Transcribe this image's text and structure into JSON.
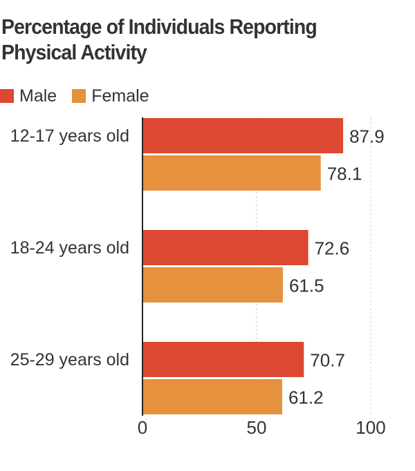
{
  "title": "Percentage of Individuals Reporting Physical Activity",
  "legend": [
    {
      "name": "Male",
      "color": "#dc4831"
    },
    {
      "name": "Female",
      "color": "#e5913e"
    }
  ],
  "chart_data": {
    "type": "bar",
    "orientation": "horizontal",
    "title": "Percentage of Individuals Reporting Physical Activity",
    "categories": [
      "12-17 years old",
      "18-24 years old",
      "25-29 years old"
    ],
    "series": [
      {
        "name": "Male",
        "color": "#dc4831",
        "values": [
          87.9,
          72.6,
          70.7
        ]
      },
      {
        "name": "Female",
        "color": "#e5913e",
        "values": [
          78.1,
          61.5,
          61.2
        ]
      }
    ],
    "xlim": [
      0,
      100
    ],
    "xticks": [
      0,
      50,
      100
    ],
    "grid": true,
    "legend_position": "top-left"
  }
}
